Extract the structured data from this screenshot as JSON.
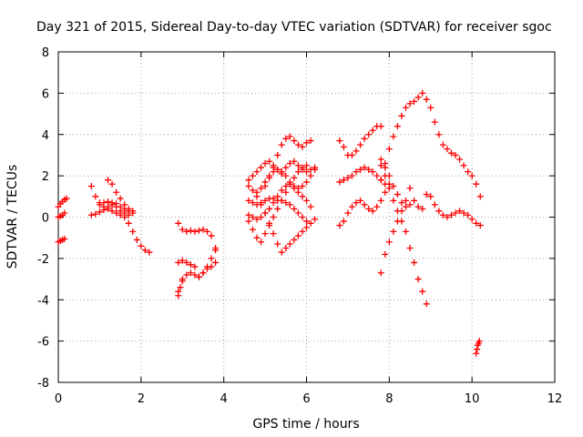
{
  "chart_data": {
    "type": "scatter",
    "title": "Day 321 of 2015, Sidereal Day-to-day VTEC variation (SDTVAR) for receiver sgoc",
    "xlabel": "GPS time / hours",
    "ylabel": "SDTVAR / TECUs",
    "xlim": [
      0,
      12
    ],
    "ylim": [
      -8,
      8
    ],
    "xticks": [
      0,
      2,
      4,
      6,
      8,
      10,
      12
    ],
    "yticks": [
      -8,
      -6,
      -4,
      -2,
      0,
      2,
      4,
      6,
      8
    ],
    "grid": true,
    "marker": "+",
    "color": "#ff0000",
    "series": [
      {
        "x": [
          0.0,
          0.05,
          0.1,
          0.15,
          0.2
        ],
        "y": [
          0.5,
          0.65,
          0.75,
          0.85,
          0.9
        ]
      },
      {
        "x": [
          0.0,
          0.05,
          0.1,
          0.15
        ],
        "y": [
          0.0,
          0.05,
          0.1,
          0.2
        ]
      },
      {
        "x": [
          0.0,
          0.05,
          0.1,
          0.15
        ],
        "y": [
          -1.2,
          -1.15,
          -1.1,
          -1.05
        ]
      },
      {
        "x": [
          0.8,
          0.9,
          1.0,
          1.1,
          1.2,
          1.3,
          1.4,
          1.5,
          1.6,
          1.7,
          1.8,
          1.9,
          2.0,
          2.1,
          2.2
        ],
        "y": [
          1.5,
          1.0,
          0.7,
          0.5,
          0.4,
          0.3,
          0.2,
          0.1,
          0.0,
          -0.3,
          -0.7,
          -1.1,
          -1.4,
          -1.6,
          -1.7
        ]
      },
      {
        "x": [
          0.8,
          0.9,
          1.0,
          1.1,
          1.2,
          1.3,
          1.4,
          1.5,
          1.6,
          1.7
        ],
        "y": [
          0.1,
          0.15,
          0.25,
          0.35,
          0.5,
          0.6,
          0.5,
          0.3,
          0.2,
          0.1
        ]
      },
      {
        "x": [
          1.2,
          1.3,
          1.4,
          1.5,
          1.6,
          1.7,
          1.8
        ],
        "y": [
          1.8,
          1.6,
          1.2,
          0.9,
          0.6,
          0.4,
          0.3
        ]
      },
      {
        "x": [
          1.0,
          1.1,
          1.2,
          1.3,
          1.4,
          1.5,
          1.6,
          1.7,
          1.8
        ],
        "y": [
          0.6,
          0.7,
          0.75,
          0.7,
          0.65,
          0.5,
          0.4,
          0.3,
          0.2
        ]
      },
      {
        "x": [
          2.9,
          3.0,
          3.1,
          3.2,
          3.3,
          3.4,
          3.5,
          3.6,
          3.7,
          3.8
        ],
        "y": [
          -0.3,
          -0.6,
          -0.7,
          -0.65,
          -0.7,
          -0.65,
          -0.6,
          -0.7,
          -0.9,
          -1.5
        ]
      },
      {
        "x": [
          2.9,
          3.0,
          3.1,
          3.2,
          3.3,
          3.4,
          3.5,
          3.6,
          3.7,
          3.8
        ],
        "y": [
          -3.6,
          -3.0,
          -2.8,
          -2.7,
          -2.8,
          -2.9,
          -2.7,
          -2.5,
          -2.4,
          -2.2
        ]
      },
      {
        "x": [
          2.9,
          3.0,
          3.1,
          3.2,
          3.3
        ],
        "y": [
          -2.2,
          -2.1,
          -2.2,
          -2.3,
          -2.4
        ]
      },
      {
        "x": [
          2.9,
          2.95,
          3.0
        ],
        "y": [
          -3.8,
          -3.4,
          -3.1
        ]
      },
      {
        "x": [
          3.4,
          3.5,
          3.6,
          3.7,
          3.8
        ],
        "y": [
          -2.9,
          -2.7,
          -2.4,
          -2.0,
          -1.6
        ]
      },
      {
        "x": [
          4.6,
          4.7,
          4.8,
          4.9,
          5.0,
          5.1,
          5.2,
          5.3,
          5.4
        ],
        "y": [
          1.8,
          2.0,
          2.2,
          2.4,
          2.6,
          2.7,
          2.5,
          2.3,
          2.1
        ]
      },
      {
        "x": [
          4.6,
          4.7,
          4.8,
          4.9,
          5.0,
          5.1,
          5.2,
          5.3,
          5.4,
          5.5,
          5.6,
          5.7,
          5.8,
          5.9,
          6.0,
          6.1
        ],
        "y": [
          0.1,
          0.0,
          -0.1,
          0.0,
          0.2,
          0.4,
          0.7,
          1.0,
          1.3,
          1.5,
          1.6,
          1.4,
          1.2,
          1.0,
          0.8,
          0.5
        ]
      },
      {
        "x": [
          4.6,
          4.7,
          4.8,
          4.9,
          5.0,
          5.1,
          5.2,
          5.3,
          5.4,
          5.5,
          5.6,
          5.7,
          5.8,
          5.9,
          6.0
        ],
        "y": [
          0.8,
          0.7,
          0.6,
          0.7,
          0.8,
          0.9,
          0.9,
          0.8,
          0.8,
          0.7,
          0.6,
          0.4,
          0.2,
          0.0,
          -0.2
        ]
      },
      {
        "x": [
          5.0,
          5.1,
          5.2,
          5.3,
          5.4,
          5.5,
          5.6,
          5.7,
          5.8,
          5.9,
          6.0,
          6.1
        ],
        "y": [
          1.5,
          1.9,
          2.4,
          3.0,
          3.5,
          3.8,
          3.9,
          3.7,
          3.5,
          3.4,
          3.6,
          3.7
        ]
      },
      {
        "x": [
          4.8,
          4.9,
          5.0,
          5.1,
          5.2,
          5.3,
          5.4,
          5.5,
          5.6,
          5.7,
          5.8,
          5.9,
          6.0,
          6.1,
          6.2
        ],
        "y": [
          1.2,
          1.4,
          1.7,
          2.0,
          2.2,
          2.3,
          2.2,
          2.0,
          1.7,
          1.5,
          1.4,
          1.5,
          1.7,
          2.0,
          2.3
        ]
      },
      {
        "x": [
          4.6,
          4.7,
          4.8,
          4.9,
          5.0,
          5.1,
          5.2,
          5.3,
          5.4,
          5.5,
          5.6,
          5.7,
          5.8,
          5.9,
          6.0,
          6.1,
          6.2
        ],
        "y": [
          1.5,
          1.3,
          1.0,
          0.6,
          0.2,
          -0.3,
          -0.8,
          -1.3,
          -1.7,
          -1.5,
          -1.3,
          -1.1,
          -0.9,
          -0.7,
          -0.5,
          -0.3,
          -0.1
        ]
      },
      {
        "x": [
          4.6,
          4.7,
          4.8,
          4.9,
          5.0,
          5.1,
          5.2,
          5.3,
          5.4,
          5.5,
          5.6,
          5.7,
          5.8,
          5.9,
          6.0
        ],
        "y": [
          -0.2,
          -0.6,
          -1.0,
          -1.2,
          -0.8,
          -0.4,
          0.0,
          0.4,
          0.8,
          1.2,
          1.6,
          1.9,
          2.2,
          2.4,
          2.5
        ]
      },
      {
        "x": [
          5.4,
          5.5,
          5.6,
          5.7,
          5.8,
          5.9,
          6.0,
          6.1,
          6.2
        ],
        "y": [
          2.2,
          2.4,
          2.6,
          2.7,
          2.5,
          2.3,
          2.2,
          2.3,
          2.4
        ]
      },
      {
        "x": [
          6.8,
          6.9,
          7.0,
          7.1,
          7.2,
          7.3,
          7.4,
          7.5,
          7.6,
          7.7,
          7.8
        ],
        "y": [
          3.7,
          3.4,
          3.0,
          3.0,
          3.2,
          3.5,
          3.8,
          4.0,
          4.2,
          4.4,
          4.4
        ]
      },
      {
        "x": [
          6.8,
          6.9,
          7.0,
          7.1,
          7.2,
          7.3,
          7.4,
          7.5,
          7.6,
          7.7,
          7.8,
          7.9
        ],
        "y": [
          1.7,
          1.8,
          1.9,
          2.0,
          2.2,
          2.3,
          2.4,
          2.3,
          2.2,
          2.0,
          1.8,
          1.6
        ]
      },
      {
        "x": [
          6.8,
          6.9,
          7.0,
          7.1,
          7.2,
          7.3,
          7.4,
          7.5,
          7.6,
          7.7,
          7.8,
          7.9,
          8.0
        ],
        "y": [
          -0.4,
          -0.2,
          0.2,
          0.5,
          0.7,
          0.8,
          0.6,
          0.4,
          0.3,
          0.5,
          0.8,
          1.2,
          1.6
        ]
      },
      {
        "x": [
          7.8,
          7.9,
          8.0,
          8.1,
          8.2,
          8.3,
          8.4,
          8.5,
          8.6,
          8.7,
          8.8,
          8.9,
          9.0,
          9.1,
          9.2,
          9.3,
          9.4,
          9.5,
          9.6,
          9.7,
          9.8,
          9.9,
          10.0,
          10.1,
          10.2
        ],
        "y": [
          1.8,
          2.6,
          3.3,
          3.9,
          4.4,
          4.9,
          5.3,
          5.5,
          5.6,
          5.8,
          6.0,
          5.7,
          5.3,
          4.6,
          4.0,
          3.5,
          3.3,
          3.1,
          3.0,
          2.8,
          2.5,
          2.2,
          2.0,
          1.6,
          1.0
        ]
      },
      {
        "x": [
          7.8,
          7.9,
          8.0,
          8.1,
          8.2,
          8.3,
          8.4,
          8.5,
          8.6,
          8.7,
          8.8,
          8.9,
          9.0,
          9.1,
          9.2,
          9.3,
          9.4,
          9.5,
          9.6,
          9.7,
          9.8,
          9.9,
          10.0,
          10.1,
          10.2
        ],
        "y": [
          2.8,
          2.4,
          2.0,
          1.5,
          1.1,
          0.7,
          0.5,
          0.6,
          0.8,
          0.5,
          0.4,
          1.1,
          1.0,
          0.6,
          0.3,
          0.1,
          0.0,
          0.1,
          0.2,
          0.3,
          0.2,
          0.1,
          -0.1,
          -0.3,
          -0.4
        ]
      },
      {
        "x": [
          7.8,
          7.9,
          8.0,
          8.1,
          8.2,
          8.3,
          8.4,
          8.5,
          8.6,
          8.7,
          8.8,
          8.9
        ],
        "y": [
          2.5,
          2.0,
          1.4,
          0.8,
          0.3,
          -0.2,
          -0.7,
          -1.5,
          -2.2,
          -3.0,
          -3.6,
          -4.2
        ]
      },
      {
        "x": [
          7.8,
          7.9,
          8.0,
          8.1,
          8.2,
          8.3,
          8.4,
          8.5
        ],
        "y": [
          -2.7,
          -1.8,
          -1.2,
          -0.7,
          -0.2,
          0.3,
          0.8,
          1.4
        ]
      },
      {
        "x": [
          10.1,
          10.12,
          10.14,
          10.16,
          10.18
        ],
        "y": [
          -6.6,
          -6.4,
          -6.2,
          -6.1,
          -6.0
        ]
      }
    ]
  }
}
